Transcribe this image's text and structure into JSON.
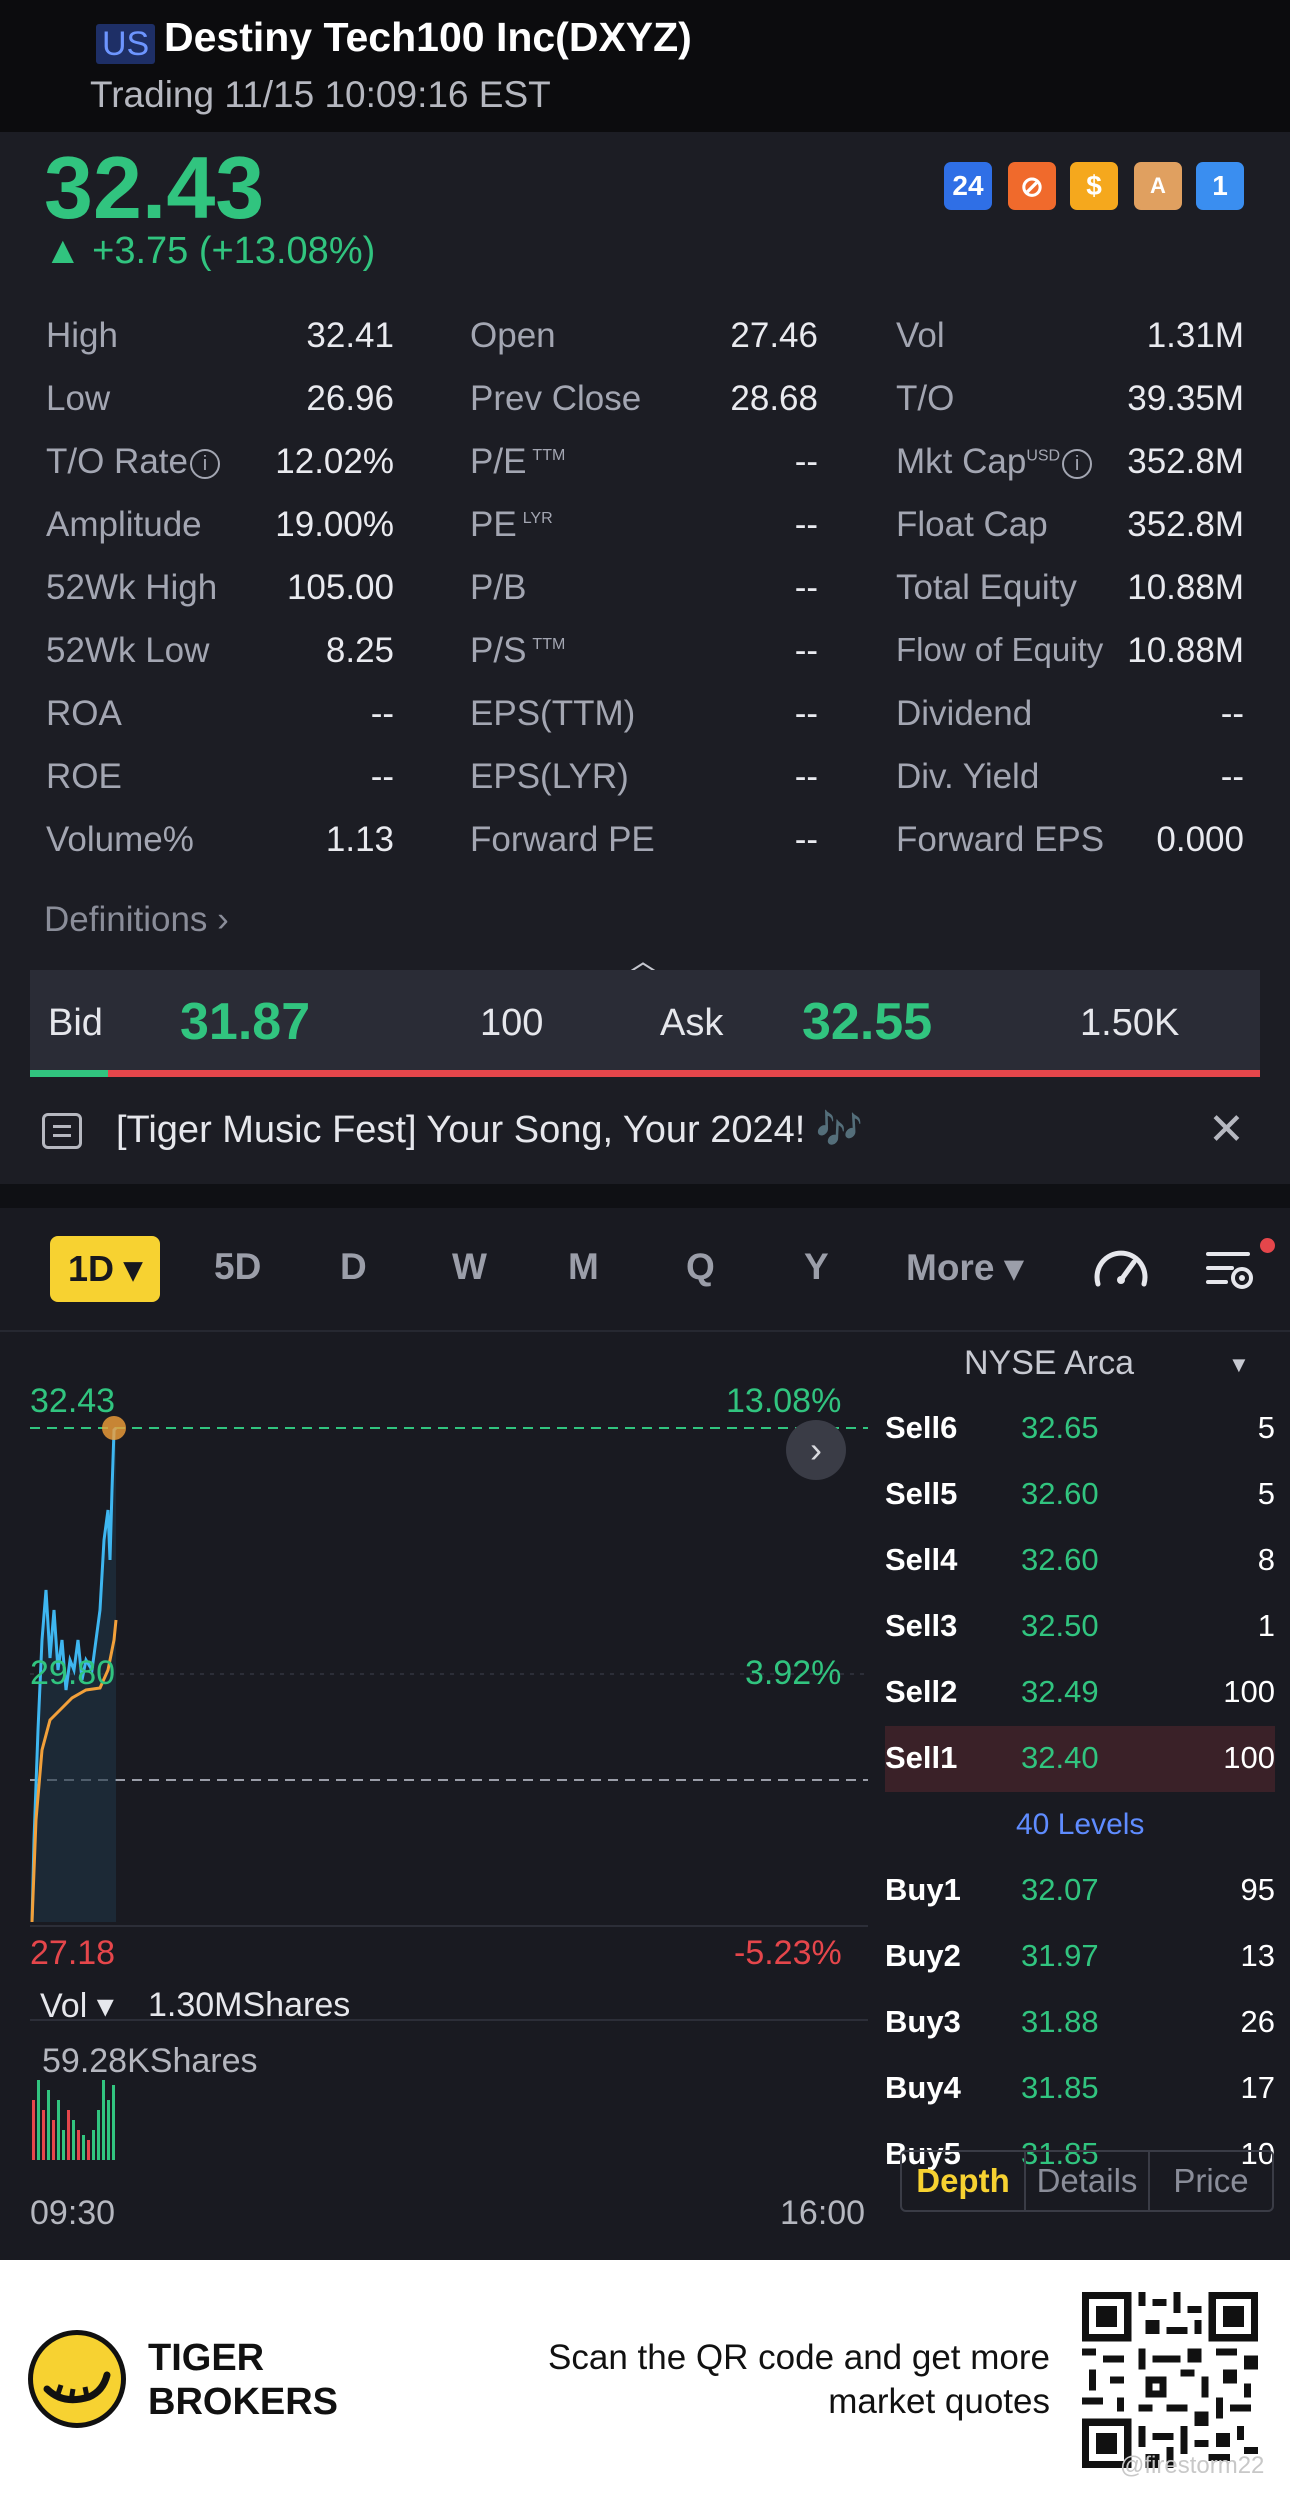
{
  "header": {
    "market": "US",
    "title": "Destiny Tech100 Inc(DXYZ)",
    "status": "Trading 11/15 10:09:16 EST"
  },
  "quote": {
    "price": "32.43",
    "change": "▲ +3.75 (+13.08%)",
    "badges": [
      "24",
      "⊘",
      "$",
      "A",
      "1"
    ]
  },
  "stats": {
    "col1": [
      {
        "label": "High",
        "value": "32.41"
      },
      {
        "label": "Low",
        "value": "26.96"
      },
      {
        "label": "T/O Rate",
        "value": "12.02%"
      },
      {
        "label": "Amplitude",
        "value": "19.00%"
      },
      {
        "label": "52Wk High",
        "value": "105.00"
      },
      {
        "label": "52Wk Low",
        "value": "8.25"
      },
      {
        "label": "ROA",
        "value": "--"
      },
      {
        "label": "ROE",
        "value": "--"
      },
      {
        "label": "Volume%",
        "value": "1.13"
      }
    ],
    "col2": [
      {
        "label": "Open",
        "value": "27.46"
      },
      {
        "label": "Prev Close",
        "value": "28.68"
      },
      {
        "label": "P/E",
        "sup": "TTM",
        "value": "--"
      },
      {
        "label": "PE",
        "sup": "LYR",
        "value": "--"
      },
      {
        "label": "P/B",
        "value": "--"
      },
      {
        "label": "P/S",
        "sup": "TTM",
        "value": "--"
      },
      {
        "label": "EPS(TTM)",
        "value": "--"
      },
      {
        "label": "EPS(LYR)",
        "value": "--"
      },
      {
        "label": "Forward PE",
        "value": "--"
      }
    ],
    "col3": [
      {
        "label": "Vol",
        "value": "1.31M"
      },
      {
        "label": "T/O",
        "value": "39.35M"
      },
      {
        "label": "Mkt Cap",
        "sup": "USD",
        "value": "352.8M"
      },
      {
        "label": "Float Cap",
        "value": "352.8M"
      },
      {
        "label": "Total Equity",
        "value": "10.88M"
      },
      {
        "label": "Flow of Equity",
        "value": "10.88M"
      },
      {
        "label": "Dividend",
        "value": "--"
      },
      {
        "label": "Div. Yield",
        "value": "--"
      },
      {
        "label": "Forward EPS",
        "value": "0.000"
      }
    ],
    "definitions": "Definitions ›"
  },
  "bidask": {
    "bid_label": "Bid",
    "bid_price": "31.87",
    "bid_size": "100",
    "ask_label": "Ask",
    "ask_price": "32.55",
    "ask_size": "1.50K"
  },
  "news": {
    "text": "[Tiger Music Fest] Your Song, Your 2024! 🎶"
  },
  "tabs": [
    "1D ▾",
    "5D",
    "D",
    "W",
    "M",
    "Q",
    "Y",
    "More ▾"
  ],
  "chart": {
    "price_high": "32.43",
    "pct_high": "13.08%",
    "price_mid": "29.80",
    "pct_mid": "3.92%",
    "price_low": "27.18",
    "pct_low": "-5.23%",
    "vol_label": "Vol ▾",
    "vol_total": "1.30MShares",
    "vol_max": "59.28KShares",
    "time_start": "09:30",
    "time_end": "16:00"
  },
  "orderbook": {
    "exchange": "NYSE Arca",
    "sells": [
      {
        "label": "Sell6",
        "price": "32.65",
        "size": "5"
      },
      {
        "label": "Sell5",
        "price": "32.60",
        "size": "5"
      },
      {
        "label": "Sell4",
        "price": "32.60",
        "size": "8"
      },
      {
        "label": "Sell3",
        "price": "32.50",
        "size": "1"
      },
      {
        "label": "Sell2",
        "price": "32.49",
        "size": "100"
      },
      {
        "label": "Sell1",
        "price": "32.40",
        "size": "100"
      }
    ],
    "levels": "40 Levels",
    "buys": [
      {
        "label": "Buy1",
        "price": "32.07",
        "size": "95"
      },
      {
        "label": "Buy2",
        "price": "31.97",
        "size": "13"
      },
      {
        "label": "Buy3",
        "price": "31.88",
        "size": "26"
      },
      {
        "label": "Buy4",
        "price": "31.85",
        "size": "17"
      },
      {
        "label": "Buy5",
        "price": "31.85",
        "size": "10"
      }
    ],
    "tabs": [
      "Depth",
      "Details",
      "Price"
    ]
  },
  "footer": {
    "brand": "TIGER\nBROKERS",
    "scan": "Scan the QR code and get more\nmarket quotes",
    "watermark": "@firestorm22"
  },
  "colors": {
    "up": "#31c47f",
    "down": "#e5464b",
    "accent": "#f7d231",
    "link": "#5f8cff"
  }
}
